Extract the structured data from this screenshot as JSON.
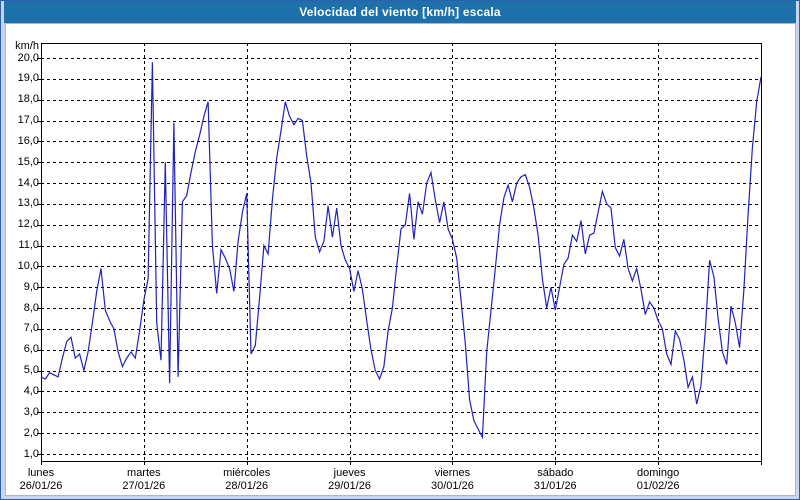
{
  "window": {
    "title": "Velocidad del viento [km/h] escala"
  },
  "colors": {
    "titlebar_bg": "#1d70a8",
    "title_text": "#ffffff",
    "frame": "#c9d4ee",
    "plot_bg": "#ffffff",
    "line": "#2222bb",
    "grid": "#000000",
    "axis": "#000000"
  },
  "chart_data": {
    "type": "line",
    "title": "Velocidad del viento [km/h] escala",
    "ylabel": "km/h",
    "ylim": [
      1,
      20
    ],
    "grid": "dashed",
    "legend": "none",
    "y_tick_labels": [
      "20,0",
      "19,0",
      "18,0",
      "17,0",
      "16,0",
      "15,0",
      "14,0",
      "13,0",
      "12,0",
      "11,0",
      "10,0",
      "9,0",
      "8,0",
      "7,0",
      "6,0",
      "5,0",
      "4,0",
      "3,0",
      "2,0",
      "1,0"
    ],
    "days": [
      {
        "name": "lunes",
        "date": "26/01/26"
      },
      {
        "name": "martes",
        "date": "27/01/26"
      },
      {
        "name": "miércoles",
        "date": "28/01/26"
      },
      {
        "name": "jueves",
        "date": "29/01/26"
      },
      {
        "name": "viernes",
        "date": "30/01/26"
      },
      {
        "name": "sábado",
        "date": "31/01/26"
      },
      {
        "name": "domingo",
        "date": "01/02/26"
      }
    ],
    "sampling": "hourly, 24 points per day plus closing point",
    "values": [
      4.7,
      4.6,
      4.9,
      4.8,
      4.7,
      5.6,
      6.4,
      6.6,
      5.6,
      5.8,
      5.0,
      5.9,
      7.3,
      8.8,
      9.9,
      7.9,
      7.4,
      7.0,
      5.9,
      5.2,
      5.6,
      5.9,
      5.6,
      6.9,
      8.4,
      9.4,
      19.8,
      7.3,
      5.5,
      15.0,
      4.4,
      16.9,
      4.7,
      13.1,
      13.4,
      14.5,
      15.5,
      16.3,
      17.2,
      17.9,
      11.0,
      8.7,
      10.8,
      10.4,
      9.9,
      8.8,
      11.2,
      12.6,
      13.5,
      5.8,
      6.2,
      8.5,
      11.0,
      10.6,
      13.2,
      15.2,
      16.5,
      17.9,
      17.2,
      16.8,
      17.1,
      17.0,
      15.3,
      14.0,
      11.4,
      10.7,
      11.2,
      12.9,
      11.4,
      12.8,
      11.0,
      10.3,
      9.9,
      8.8,
      9.8,
      8.9,
      7.4,
      6.0,
      5.0,
      4.6,
      5.2,
      6.9,
      8.0,
      10.0,
      11.8,
      12.0,
      13.5,
      11.3,
      13.1,
      12.5,
      14.0,
      14.5,
      13.2,
      12.1,
      13.1,
      11.8,
      11.3,
      10.4,
      8.4,
      6.3,
      3.6,
      2.6,
      2.2,
      1.8,
      5.9,
      7.9,
      9.9,
      12.0,
      13.3,
      13.9,
      13.1,
      14.0,
      14.3,
      14.4,
      13.8,
      12.8,
      11.5,
      9.4,
      8.0,
      9.0,
      7.9,
      9.0,
      10.1,
      10.4,
      11.5,
      11.2,
      12.2,
      10.6,
      11.5,
      11.6,
      12.6,
      13.6,
      13.0,
      12.8,
      10.9,
      10.5,
      11.3,
      9.9,
      9.3,
      9.9,
      8.9,
      7.7,
      8.3,
      8.0,
      7.4,
      7.0,
      5.8,
      5.3,
      6.9,
      6.5,
      5.5,
      4.2,
      4.7,
      3.4,
      4.3,
      6.9,
      10.3,
      9.5,
      7.5,
      5.9,
      5.3,
      8.1,
      7.3,
      6.1,
      8.9,
      12.5,
      15.7,
      17.9,
      19.1
    ]
  }
}
